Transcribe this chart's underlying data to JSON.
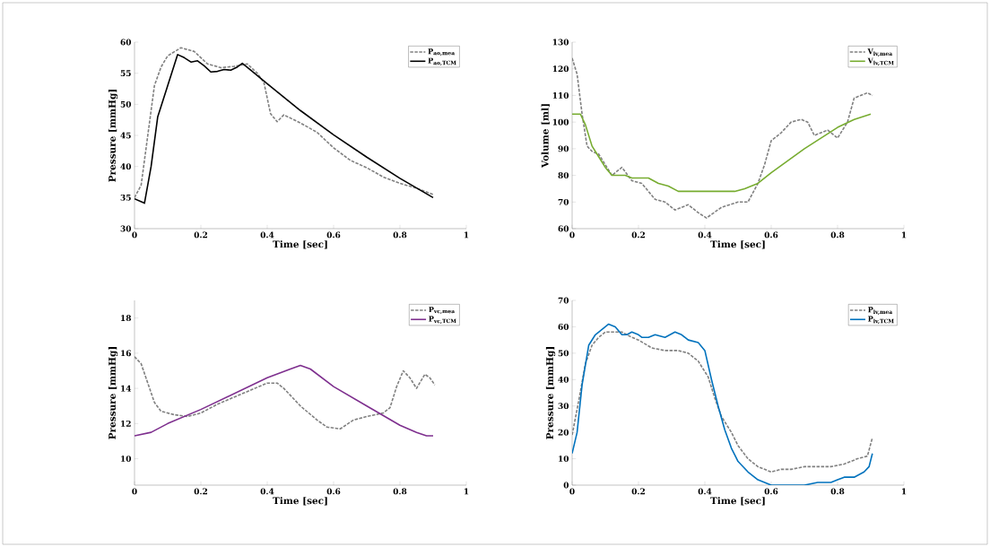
{
  "chart_data": [
    {
      "type": "line",
      "xlabel": "Time [sec]",
      "ylabel": "Pressure [mmHg]",
      "xlim": [
        0,
        1
      ],
      "xticks": [
        0,
        0.2,
        0.4,
        0.6,
        0.8,
        1
      ],
      "ylim": [
        30,
        60
      ],
      "yticks": [
        30,
        35,
        40,
        45,
        50,
        55,
        60
      ],
      "legend": "top right",
      "series": [
        {
          "name": "P$_{ao,mea}$",
          "color": "#808080",
          "line_style": "dashed",
          "x": [
            0,
            0.02,
            0.04,
            0.06,
            0.08,
            0.1,
            0.14,
            0.18,
            0.22,
            0.26,
            0.3,
            0.34,
            0.37,
            0.39,
            0.41,
            0.43,
            0.45,
            0.5,
            0.55,
            0.6,
            0.65,
            0.7,
            0.75,
            0.8,
            0.85,
            0.9
          ],
          "values": [
            35,
            37,
            45,
            53,
            56,
            57.8,
            59.1,
            58.5,
            56.5,
            55.9,
            56.1,
            56.5,
            55,
            53.5,
            48.5,
            47.2,
            48.3,
            47,
            45.5,
            43,
            41,
            39.8,
            38.3,
            37.3,
            36.5,
            35.5
          ]
        },
        {
          "name": "P$_{ao,TCM}$",
          "color": "#000000",
          "line_style": "solid",
          "x": [
            0,
            0.03,
            0.05,
            0.07,
            0.1,
            0.13,
            0.15,
            0.17,
            0.19,
            0.21,
            0.23,
            0.25,
            0.27,
            0.29,
            0.31,
            0.325,
            0.35,
            0.4,
            0.5,
            0.6,
            0.7,
            0.8,
            0.9
          ],
          "values": [
            34.8,
            34.1,
            40,
            48,
            53,
            58,
            57.5,
            56.8,
            57,
            56.2,
            55.2,
            55.3,
            55.6,
            55.5,
            56,
            56.6,
            55.5,
            53.3,
            49,
            45.1,
            41.5,
            38.1,
            35
          ]
        }
      ]
    },
    {
      "type": "line",
      "xlabel": "Time [sec]",
      "ylabel": "Volume [ml]",
      "xlim": [
        0,
        1
      ],
      "xticks": [
        0,
        0.2,
        0.4,
        0.6,
        0.8,
        1
      ],
      "ylim": [
        60,
        130
      ],
      "yticks": [
        60,
        70,
        80,
        90,
        100,
        110,
        120,
        130
      ],
      "legend": "top right",
      "series": [
        {
          "name": "V$_{lv,mea}$",
          "color": "#808080",
          "line_style": "dashed",
          "x": [
            0,
            0.015,
            0.03,
            0.045,
            0.06,
            0.08,
            0.1,
            0.12,
            0.15,
            0.18,
            0.21,
            0.25,
            0.28,
            0.31,
            0.35,
            0.38,
            0.405,
            0.45,
            0.5,
            0.53,
            0.56,
            0.58,
            0.6,
            0.63,
            0.66,
            0.69,
            0.71,
            0.73,
            0.77,
            0.8,
            0.83,
            0.85,
            0.89,
            0.905
          ],
          "values": [
            124,
            118,
            103,
            91,
            89,
            88,
            84,
            80,
            83,
            78,
            77,
            71,
            70,
            67,
            69,
            66,
            64,
            68,
            70,
            70,
            77,
            84,
            93,
            96,
            100,
            101,
            100,
            95,
            97,
            94,
            100,
            109,
            111,
            110
          ]
        },
        {
          "name": "V$_{lv,TCM}$",
          "color": "#77ac30",
          "line_style": "solid",
          "x": [
            0,
            0.025,
            0.04,
            0.06,
            0.08,
            0.1,
            0.12,
            0.16,
            0.18,
            0.2,
            0.23,
            0.26,
            0.29,
            0.32,
            0.4,
            0.49,
            0.52,
            0.56,
            0.6,
            0.7,
            0.8,
            0.85,
            0.9
          ],
          "values": [
            103,
            103,
            99,
            91,
            87,
            83,
            80,
            80,
            79,
            79,
            79,
            77,
            76,
            74,
            74,
            74,
            75,
            77,
            81,
            90,
            98,
            101,
            103
          ]
        }
      ]
    },
    {
      "type": "line",
      "xlabel": "Time [sec]",
      "ylabel": "Pressure [mmHg]",
      "xlim": [
        0,
        1
      ],
      "xticks": [
        0,
        0.2,
        0.4,
        0.6,
        0.8,
        1
      ],
      "ylim": [
        8.5,
        19
      ],
      "yticks": [
        10,
        12,
        14,
        16,
        18
      ],
      "legend": "top right",
      "series": [
        {
          "name": "P$_{vc,mea}$",
          "color": "#808080",
          "line_style": "dashed",
          "x": [
            0,
            0.02,
            0.04,
            0.06,
            0.08,
            0.12,
            0.16,
            0.2,
            0.25,
            0.3,
            0.35,
            0.4,
            0.43,
            0.45,
            0.5,
            0.55,
            0.58,
            0.62,
            0.66,
            0.7,
            0.75,
            0.77,
            0.79,
            0.81,
            0.83,
            0.85,
            0.875,
            0.89,
            0.905
          ],
          "values": [
            15.8,
            15.4,
            14.3,
            13.2,
            12.7,
            12.5,
            12.4,
            12.6,
            13.1,
            13.5,
            13.9,
            14.3,
            14.3,
            14,
            13,
            12.2,
            11.8,
            11.7,
            12.2,
            12.4,
            12.6,
            12.9,
            14.1,
            15,
            14.6,
            14,
            14.8,
            14.6,
            14.2
          ]
        },
        {
          "name": "P$_{vc,TCM}$",
          "color": "#7e2f8e",
          "line_style": "solid",
          "x": [
            0,
            0.05,
            0.1,
            0.2,
            0.3,
            0.4,
            0.47,
            0.5,
            0.53,
            0.6,
            0.7,
            0.8,
            0.85,
            0.88,
            0.9
          ],
          "values": [
            11.3,
            11.5,
            12,
            12.8,
            13.7,
            14.6,
            15.1,
            15.3,
            15.1,
            14.1,
            13,
            11.9,
            11.5,
            11.3,
            11.3
          ]
        }
      ]
    },
    {
      "type": "line",
      "xlabel": "Time [sec]",
      "ylabel": "Pressure [mmHg]",
      "xlim": [
        0,
        1
      ],
      "xticks": [
        0,
        0.2,
        0.4,
        0.6,
        0.8,
        1
      ],
      "ylim": [
        0,
        70
      ],
      "yticks": [
        0,
        10,
        20,
        30,
        40,
        50,
        60,
        70
      ],
      "legend": "top right",
      "series": [
        {
          "name": "P$_{lv,mea}$",
          "color": "#808080",
          "line_style": "dashed",
          "x": [
            0,
            0.02,
            0.04,
            0.06,
            0.08,
            0.1,
            0.12,
            0.15,
            0.18,
            0.2,
            0.24,
            0.28,
            0.32,
            0.35,
            0.38,
            0.41,
            0.43,
            0.45,
            0.48,
            0.5,
            0.53,
            0.56,
            0.6,
            0.63,
            0.66,
            0.7,
            0.75,
            0.78,
            0.82,
            0.86,
            0.89,
            0.905
          ],
          "values": [
            19,
            32,
            46,
            53,
            56,
            58,
            58,
            58,
            56,
            55,
            52,
            51,
            51,
            50,
            47,
            41,
            33,
            26,
            20,
            15,
            10,
            7,
            5,
            6,
            6,
            7,
            7,
            7,
            8,
            10,
            11,
            18
          ]
        },
        {
          "name": "P$_{lv,TCM}$",
          "color": "#0072bd",
          "line_style": "solid",
          "x": [
            0,
            0.015,
            0.03,
            0.05,
            0.07,
            0.09,
            0.11,
            0.13,
            0.15,
            0.165,
            0.18,
            0.2,
            0.21,
            0.23,
            0.25,
            0.28,
            0.31,
            0.33,
            0.35,
            0.38,
            0.4,
            0.42,
            0.44,
            0.46,
            0.48,
            0.5,
            0.53,
            0.56,
            0.6,
            0.62,
            0.66,
            0.7,
            0.74,
            0.78,
            0.8,
            0.82,
            0.85,
            0.88,
            0.895,
            0.905
          ],
          "values": [
            12,
            20,
            38,
            53,
            57,
            59,
            61,
            60,
            57,
            57,
            58,
            57,
            56,
            56,
            57,
            56,
            58,
            57,
            55,
            54,
            51,
            40,
            30,
            21,
            14,
            9,
            5,
            2,
            0,
            0,
            0,
            0,
            1,
            1,
            2,
            3,
            3,
            5,
            7,
            12
          ]
        }
      ]
    }
  ]
}
